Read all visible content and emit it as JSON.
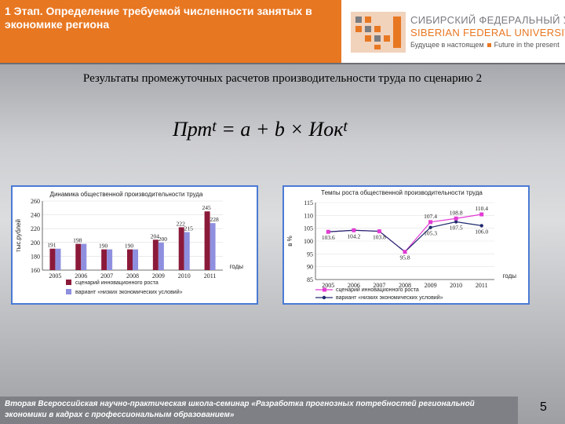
{
  "header": {
    "title": "1 Этап. Определение требуемой численности занятых в экономике региона"
  },
  "logo": {
    "line1": "СИБИРСКИЙ ФЕДЕРАЛЬНЫЙ УНИВЕРСИТЕТ",
    "line2": "SIBERIAN FEDERAL UNIVERSITY",
    "tagline_left": "Будущее в настоящем",
    "tagline_right": "Future in the present",
    "accent_color": "#e87722",
    "grey_color": "#7a7c80"
  },
  "slide": {
    "title": "Результаты промежуточных расчетов производительности труда по сценарию 2",
    "formula": {
      "lhs": "Прт",
      "lhs_sup": "t",
      "rhs": " = a + b × Иок",
      "rhs_sup": "t"
    },
    "footer": "Вторая Всероссийская научно-практическая школа-семинар «Разработка прогнозных потребностей региональной экономики в кадрах с профессиональным образованием»",
    "page_number": "5"
  },
  "chart_data": [
    {
      "type": "bar",
      "title": "Динамика общественной производительности труда",
      "ylabel": "тыс.рублей",
      "xlabel": "годы",
      "categories": [
        "2005",
        "2006",
        "2007",
        "2008",
        "2009",
        "2010",
        "2011"
      ],
      "ylim": [
        160,
        260
      ],
      "yticks": [
        "160",
        "180",
        "200",
        "220",
        "240",
        "260"
      ],
      "series": [
        {
          "name": "сценарий инновационного роста",
          "color": "#8b1a3a",
          "values": [
            191,
            198,
            190,
            190,
            204,
            222,
            245
          ],
          "labels": [
            "191",
            "198",
            "190",
            "190",
            "204",
            "222",
            "245"
          ]
        },
        {
          "name": "вариант «низких экономических условий»",
          "color": "#8f8fe0",
          "values": [
            191,
            198,
            190,
            190,
            200,
            215,
            228
          ],
          "labels": [
            "",
            "",
            "",
            "",
            "200",
            "215",
            "228"
          ]
        }
      ],
      "legend": "bottom"
    },
    {
      "type": "line",
      "title": "Темпы роста общественной производительности труда",
      "ylabel": "в %",
      "xlabel": "годы",
      "categories": [
        "2005",
        "2006",
        "2007",
        "2008",
        "2009",
        "2010",
        "2011"
      ],
      "ylim": [
        85,
        115
      ],
      "yticks": [
        "85",
        "90",
        "95",
        "100",
        "105",
        "110",
        "115"
      ],
      "series": [
        {
          "name": "сценарий инновационного роста",
          "color": "#e23bd4",
          "values": [
            103.6,
            104.2,
            103.8,
            95.8,
            107.4,
            108.8,
            110.4
          ],
          "labels": [
            "",
            "",
            "",
            "",
            "107.4",
            "108.8",
            "110.4"
          ]
        },
        {
          "name": "вариант «низких экономических условий»",
          "color": "#1f2a6e",
          "values": [
            103.6,
            104.2,
            103.8,
            95.8,
            105.3,
            107.5,
            106.0
          ],
          "labels": [
            "103.6",
            "104.2",
            "103.8",
            "95.8",
            "105.3",
            "107.5",
            "106.0"
          ]
        }
      ],
      "legend": "bottom"
    }
  ]
}
